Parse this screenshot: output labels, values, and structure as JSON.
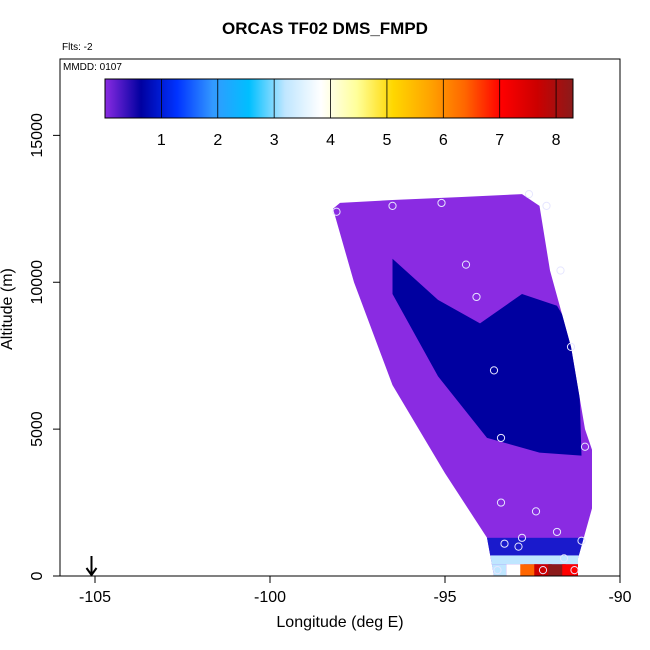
{
  "chart_data": {
    "type": "heatmap",
    "title": "ORCAS TF02 DMS_FMPD",
    "subtitle_flts": "Flts: -2",
    "annotation_mmdd": "MMDD: 0107",
    "xlabel": "Longitude (deg E)",
    "ylabel": "Altitude (m)",
    "xlim": [
      -106.0,
      -90.0
    ],
    "ylim": [
      0,
      17600
    ],
    "x_ticks": [
      -105,
      -100,
      -95,
      -90
    ],
    "x_tick_labels": [
      "-105",
      "-100",
      "-95",
      "-90"
    ],
    "y_ticks": [
      0,
      5000,
      10000,
      15000
    ],
    "y_tick_labels": [
      "0",
      "5000",
      "10000",
      "15000"
    ],
    "colorbar": {
      "range": [
        0,
        8.3
      ],
      "ticks": [
        1,
        2,
        3,
        4,
        5,
        6,
        7,
        8
      ],
      "tick_labels": [
        "1",
        "2",
        "3",
        "4",
        "5",
        "6",
        "7",
        "8"
      ],
      "colors": [
        "#8a2be2",
        "#0000a0",
        "#0033ff",
        "#3399ff",
        "#00bfff",
        "#bfe6ff",
        "#ffffff",
        "#ffff99",
        "#ffd700",
        "#ffa500",
        "#ff6600",
        "#ff0000",
        "#cc0000",
        "#8b1a1a"
      ]
    },
    "home_marker_longitude": -105.1,
    "curtain_outline": {
      "lon": [
        -98.2,
        -98.0,
        -96.5,
        -94.6,
        -92.8,
        -92.3,
        -92.0,
        -91.4,
        -91.0,
        -90.8,
        -90.8,
        -91.2,
        -91.2,
        -93.6,
        -93.8,
        -95.0,
        -96.5,
        -97.6,
        -98.2
      ],
      "alt": [
        12500,
        12700,
        12800,
        12900,
        13000,
        12600,
        10400,
        7800,
        5000,
        4300,
        2300,
        600,
        0,
        0,
        1300,
        3500,
        6500,
        10000,
        12500
      ]
    },
    "enhanced_region": {
      "lon": [
        -96.5,
        -95.2,
        -94.0,
        -92.8,
        -91.8,
        -91.2,
        -91.1,
        -92.3,
        -93.8,
        -95.2,
        -96.5
      ],
      "alt": [
        10800,
        9400,
        8600,
        9600,
        9200,
        8000,
        4100,
        4200,
        4700,
        6800,
        9600
      ],
      "value": 0.95
    },
    "near_surface_strip": {
      "lon": [
        -93.5,
        -93.0,
        -92.6,
        -92.2,
        -91.8,
        -91.4
      ],
      "alt": [
        200,
        200,
        200,
        200,
        200,
        200
      ],
      "values": [
        3.0,
        4.1,
        6.2,
        7.6,
        7.9,
        6.8
      ]
    },
    "flight_points": {
      "lon": [
        -98.1,
        -96.5,
        -95.1,
        -92.6,
        -92.1,
        -94.4,
        -94.1,
        -91.7,
        -93.6,
        -91.4,
        -93.4,
        -91.0,
        -93.4,
        -92.4,
        -92.8,
        -91.8,
        -91.1,
        -93.3,
        -92.9,
        -91.6,
        -93.5,
        -92.2,
        -91.3
      ],
      "alt": [
        12400,
        12600,
        12700,
        13000,
        12600,
        10600,
        9500,
        10400,
        7000,
        7800,
        4700,
        4400,
        2500,
        2200,
        1300,
        1500,
        1200,
        1100,
        1000,
        600,
        200,
        200,
        200
      ]
    }
  }
}
